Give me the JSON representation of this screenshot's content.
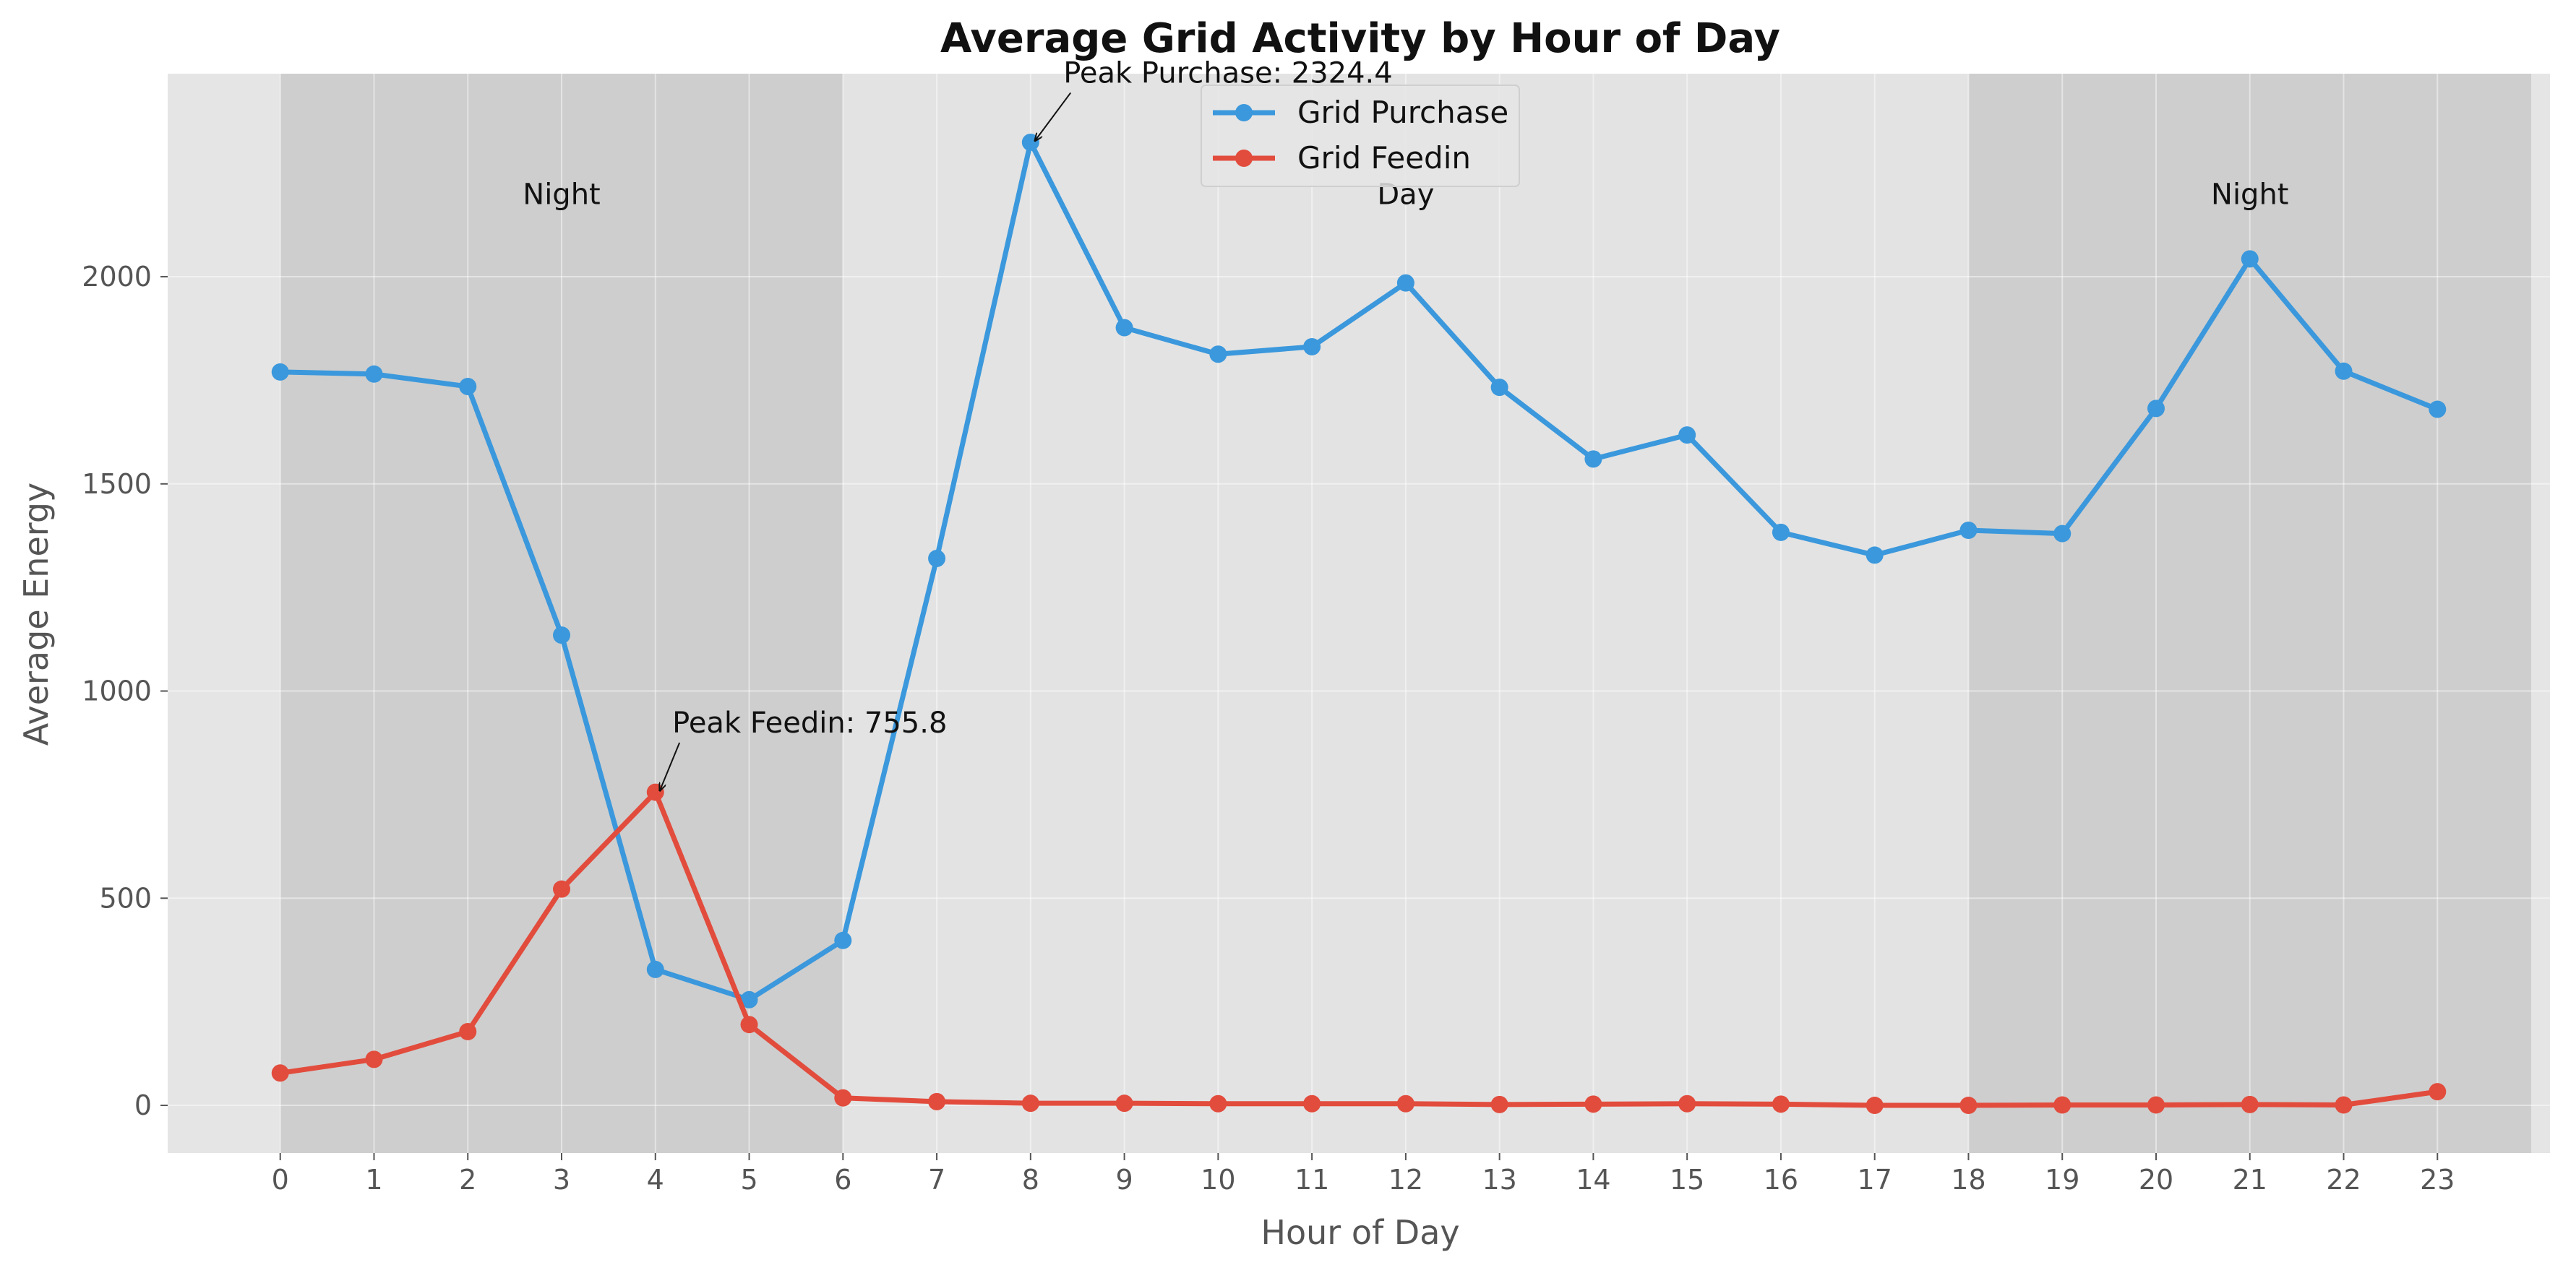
{
  "chart_data": {
    "type": "line",
    "title": "Average Grid Activity by Hour of Day",
    "xlabel": "Hour of Day",
    "ylabel": "Average Energy",
    "x": [
      0,
      1,
      2,
      3,
      4,
      5,
      6,
      7,
      8,
      9,
      10,
      11,
      12,
      13,
      14,
      15,
      16,
      17,
      18,
      19,
      20,
      21,
      22,
      23
    ],
    "xlim": [
      -1.2,
      24.2
    ],
    "ylim": [
      -115,
      2490
    ],
    "y_ticks": [
      0,
      500,
      1000,
      1500,
      2000
    ],
    "grid": true,
    "legend_position": "top-center",
    "series": [
      {
        "name": "Grid Purchase",
        "color": "#3b98dc",
        "values": [
          1770,
          1765,
          1735,
          1135,
          328,
          255,
          398,
          1320,
          2324.4,
          1877,
          1813,
          1831,
          1985,
          1733,
          1560,
          1618,
          1383,
          1328,
          1388,
          1380,
          1682,
          2043,
          1772,
          1680
        ]
      },
      {
        "name": "Grid Feedin",
        "color": "#e24c3d",
        "values": [
          78,
          111,
          178,
          522,
          755.8,
          195,
          18,
          9,
          5,
          5,
          4,
          4,
          4,
          2,
          3,
          4,
          3,
          0,
          0,
          1,
          1,
          2,
          1,
          33
        ]
      }
    ],
    "regions": [
      {
        "label": "Night",
        "x_start": 0,
        "x_end": 6,
        "color": "#cecece"
      },
      {
        "label": "Day",
        "x_start": 6,
        "x_end": 18,
        "color": "#e3e3e3"
      },
      {
        "label": "Night",
        "x_start": 18,
        "x_end": 24,
        "color": "#cecece"
      }
    ],
    "annotations": [
      {
        "text": "Peak Purchase: 2324.4",
        "x": 8,
        "y": 2324.4
      },
      {
        "text": "Peak Feedin: 755.8",
        "x": 4,
        "y": 755.8
      }
    ]
  }
}
